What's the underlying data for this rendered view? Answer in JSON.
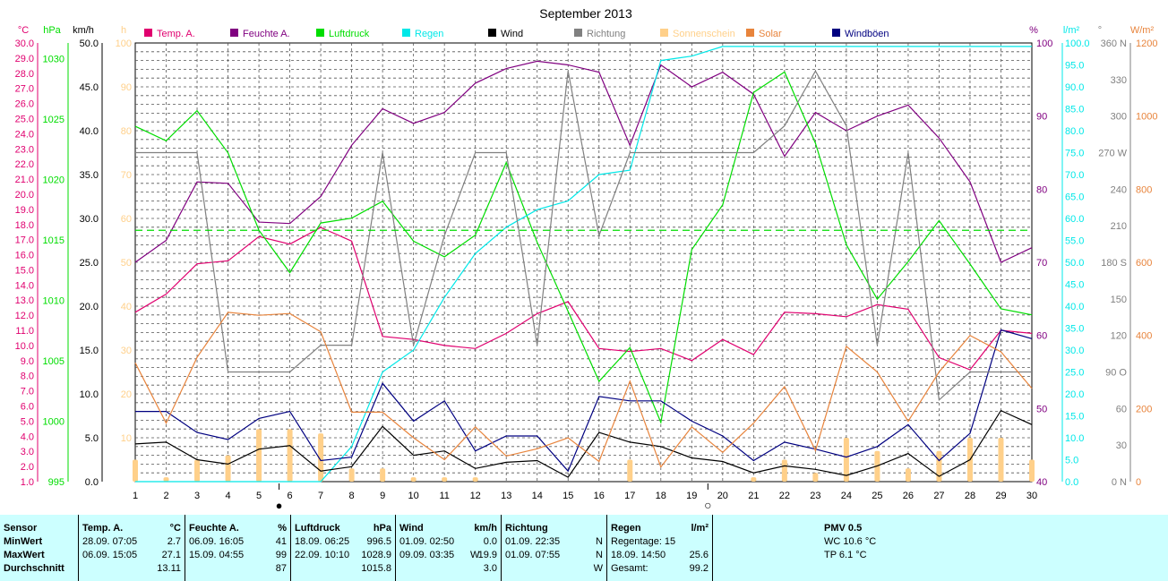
{
  "colors": {
    "temp": "#e0006f",
    "humidity": "#800080",
    "pressure": "#00dd00",
    "rain": "#00e8e8",
    "wind": "#000000",
    "direction": "#808080",
    "sunshine": "#ffd08a",
    "solar": "#e8843c",
    "gusts": "#000080",
    "grid": "#000000",
    "stats_bg": "#ccffff"
  },
  "chart_data": {
    "type": "line",
    "title": "September 2013",
    "x": [
      1,
      2,
      3,
      4,
      5,
      6,
      7,
      8,
      9,
      10,
      11,
      12,
      13,
      14,
      15,
      16,
      17,
      18,
      19,
      20,
      21,
      22,
      23,
      24,
      25,
      26,
      27,
      28,
      29,
      30
    ],
    "x_ticks": [
      "1",
      "2",
      "3",
      "4",
      "5",
      "6",
      "7",
      "8",
      "9",
      "10",
      "11",
      "12",
      "13",
      "14",
      "15",
      "16",
      "17",
      "18",
      "19",
      "20",
      "21",
      "22",
      "23",
      "24",
      "25",
      "26",
      "27",
      "28",
      "29",
      "30"
    ],
    "legend": [
      "Temp. A.",
      "Feuchte A.",
      "Luftdruck",
      "Regen",
      "Wind",
      "Richtung",
      "Sonnenschein",
      "Solar",
      "Windböen"
    ],
    "axes": {
      "temp": {
        "unit": "°C",
        "min": 1.0,
        "max": 30.0,
        "ticks": [
          "1.0",
          "2.0",
          "3.0",
          "4.0",
          "5.0",
          "6.0",
          "7.0",
          "8.0",
          "9.0",
          "10.0",
          "11.0",
          "12.0",
          "13.0",
          "14.0",
          "15.0",
          "16.0",
          "17.0",
          "18.0",
          "19.0",
          "20.0",
          "21.0",
          "22.0",
          "23.0",
          "24.0",
          "25.0",
          "26.0",
          "27.0",
          "28.0",
          "29.0",
          "30.0"
        ]
      },
      "pressure": {
        "unit": "hPa",
        "min": 995,
        "max": 1031.3,
        "ticks": [
          "995",
          "1000",
          "1005",
          "1010",
          "1015",
          "1020",
          "1025",
          "1030"
        ]
      },
      "wind": {
        "unit": "km/h",
        "min": 0,
        "max": 50,
        "ticks": [
          "0.0",
          "5.0",
          "10.0",
          "15.0",
          "20.0",
          "25.0",
          "30.0",
          "35.0",
          "40.0",
          "45.0",
          "50.0"
        ]
      },
      "sunshine": {
        "unit": "h",
        "min": 0,
        "max": 100,
        "ticks": [
          "10",
          "20",
          "30",
          "40",
          "50",
          "60",
          "70",
          "80",
          "90",
          "100"
        ]
      },
      "humidity": {
        "unit": "%",
        "min": 40,
        "max": 100,
        "ticks": [
          "40",
          "50",
          "60",
          "70",
          "80",
          "90",
          "100"
        ]
      },
      "rain": {
        "unit": "l/m²",
        "min": 0,
        "max": 100,
        "ticks": [
          "0.0",
          "5.0",
          "10.0",
          "15.0",
          "20.0",
          "25.0",
          "30.0",
          "35.0",
          "40.0",
          "45.0",
          "50.0",
          "55.0",
          "60.0",
          "65.0",
          "70.0",
          "75.0",
          "80.0",
          "85.0",
          "90.0",
          "95.0",
          "100.0"
        ]
      },
      "direction": {
        "unit": "°",
        "min": 0,
        "max": 360,
        "ticks": [
          "0 N",
          "30",
          "60",
          "90 O",
          "120",
          "150",
          "180 S",
          "210",
          "240",
          "270 W",
          "300",
          "330",
          "360 N"
        ]
      },
      "solar": {
        "unit": "W/m²",
        "min": 0,
        "max": 1200,
        "ticks": [
          "0",
          "200",
          "400",
          "600",
          "800",
          "1000",
          "1200"
        ]
      }
    },
    "series": [
      {
        "name": "Temp. A.",
        "axis": "temp",
        "values": [
          12.2,
          13.4,
          15.4,
          15.6,
          17.2,
          16.7,
          17.8,
          16.9,
          10.6,
          10.4,
          10.0,
          9.8,
          10.8,
          12.1,
          12.9,
          9.8,
          9.6,
          9.8,
          9.0,
          10.4,
          9.4,
          12.2,
          12.1,
          11.9,
          12.7,
          12.4,
          9.2,
          8.4,
          11.0,
          10.8
        ]
      },
      {
        "name": "Feuchte A.",
        "axis": "humidity",
        "values": [
          70,
          73,
          81,
          80.8,
          75.5,
          75.3,
          79,
          86,
          91,
          89,
          90.5,
          94.5,
          96.5,
          97.5,
          97,
          96,
          86,
          97,
          94,
          96,
          93,
          84.5,
          90.5,
          88,
          90,
          91.5,
          87,
          81,
          70,
          72
        ]
      },
      {
        "name": "Luftdruck",
        "axis": "pressure",
        "values": [
          1024.4,
          1023.2,
          1025.7,
          1022.2,
          1015.8,
          1012.3,
          1016.4,
          1016.8,
          1018.2,
          1014.9,
          1013.6,
          1015.4,
          1021.4,
          1014.8,
          1009.1,
          1003.3,
          1006.1,
          999.9,
          1014.2,
          1017.9,
          1027.2,
          1028.9,
          1023.0,
          1014.6,
          1010.1,
          1013.2,
          1016.6,
          1013.0,
          1009.3,
          1008.8
        ]
      },
      {
        "name": "Regen",
        "axis": "rain",
        "values": [
          0,
          0,
          0,
          0,
          0,
          0,
          0,
          8,
          25,
          30,
          42,
          52,
          58,
          62,
          64,
          70,
          71,
          96,
          97,
          99.2,
          99.2,
          99.2,
          99.2,
          99.2,
          99.2,
          99.2,
          99.2,
          99.2,
          99.2,
          99.2
        ]
      },
      {
        "name": "Wind",
        "axis": "wind",
        "values": [
          4.3,
          4.5,
          2.5,
          2.0,
          3.7,
          4.1,
          1.2,
          1.7,
          6.3,
          3.0,
          3.5,
          1.5,
          2.2,
          2.4,
          0.5,
          5.6,
          4.5,
          4.0,
          2.7,
          2.3,
          1.0,
          1.8,
          1.4,
          0.7,
          1.8,
          3.2,
          0.6,
          2.5,
          8.1,
          6.5
        ]
      },
      {
        "name": "Windböen",
        "axis": "wind",
        "values": [
          8.0,
          8.0,
          5.6,
          4.8,
          7.2,
          8.0,
          2.4,
          2.8,
          11.2,
          6.9,
          9.2,
          3.5,
          5.2,
          5.2,
          1.2,
          9.7,
          9.2,
          9.2,
          6.9,
          5.2,
          2.4,
          4.5,
          3.7,
          2.8,
          4.0,
          6.5,
          2.4,
          5.5,
          17.3,
          16.3
        ]
      },
      {
        "name": "Richtung",
        "axis": "direction",
        "values": [
          270,
          270,
          270,
          90,
          90,
          90,
          112,
          112,
          270,
          112,
          202,
          270,
          270,
          112,
          337,
          202,
          270,
          270,
          270,
          270,
          270,
          292,
          337,
          292,
          112,
          270,
          67,
          90,
          90,
          90
        ]
      },
      {
        "name": "Solar",
        "axis": "solar",
        "values": [
          325,
          160,
          340,
          463,
          455,
          460,
          410,
          190,
          190,
          120,
          60,
          150,
          70,
          90,
          120,
          55,
          275,
          40,
          150,
          80,
          160,
          260,
          85,
          370,
          300,
          165,
          300,
          400,
          355,
          255
        ]
      },
      {
        "name": "Sonnenschein",
        "axis": "sunshine",
        "type": "bar",
        "values": [
          5,
          1,
          5,
          6,
          12,
          12,
          11,
          3,
          3,
          1,
          1,
          1,
          0,
          0,
          0,
          0,
          5,
          0,
          0,
          0,
          1,
          5,
          2,
          10,
          7,
          3,
          7,
          10,
          10,
          5
        ]
      },
      {
        "name": "Durchschnitt Luftdruck",
        "axis": "pressure",
        "type": "hline",
        "value": 1015.8
      }
    ],
    "grid": true,
    "legend_position": "top"
  },
  "markers": {
    "new_moon": "●",
    "full_moon": "○"
  },
  "stats": {
    "sensor": {
      "h1": "Sensor",
      "r1": "MinWert",
      "r2": "MaxWert",
      "r3": "Durchschnitt"
    },
    "temp": {
      "title": "Temp. A.",
      "unit": "°C",
      "min_time": "28.09.  07:05",
      "min": "2.7",
      "max_time": "06.09.  15:05",
      "max": "27.1",
      "avg": "13.11"
    },
    "humidity": {
      "title": "Feuchte A.",
      "unit": "%",
      "min_time": "06.09.  16:05",
      "min": "41",
      "max_time": "15.09.  04:55",
      "max": "99",
      "avg": "87"
    },
    "pressure": {
      "title": "Luftdruck",
      "unit": "hPa",
      "min_time": "18.09.  06:25",
      "min": "996.5",
      "max_time": "22.09.  10:10",
      "max": "1028.9",
      "avg": "1015.8"
    },
    "wind": {
      "title": "Wind",
      "unit": "km/h",
      "min_time": "01.09.  02:50",
      "min": "0.0",
      "max_time": "09.09.  03:35",
      "max_dir": "W",
      "max": "19.9",
      "avg": "3.0"
    },
    "direction": {
      "title": "Richtung",
      "min_time": "01.09.  22:35",
      "min": "N",
      "max_time": "01.09.  07:55",
      "max": "N",
      "avg": "W"
    },
    "rain": {
      "title": "Regen",
      "unit": "l/m²",
      "days": "Regentage: 15",
      "max_time": "18.09.  14:50",
      "max": "25.6",
      "total_label": "Gesamt:",
      "total": "99.2"
    },
    "pmv": {
      "title": "PMV 0.5",
      "wc": "WC 10.6 °C",
      "tp": "TP 6.1 °C"
    }
  }
}
